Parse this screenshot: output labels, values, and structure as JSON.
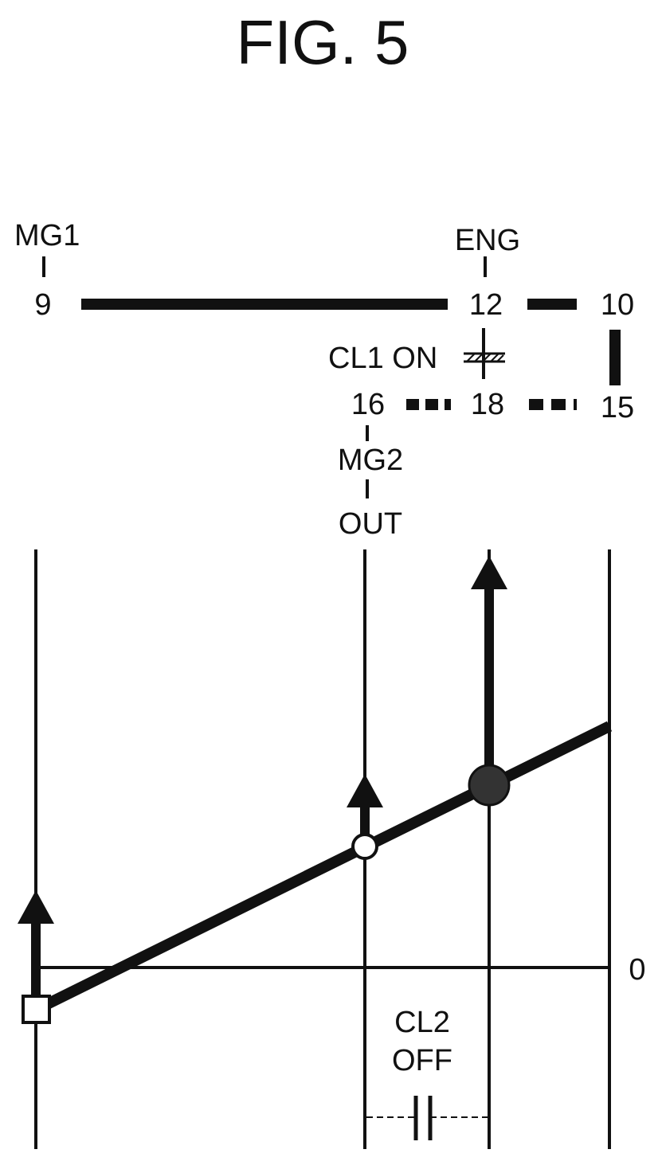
{
  "figure": {
    "title": "FIG. 5",
    "colors": {
      "ink": "#111111",
      "background": "#ffffff"
    }
  },
  "connection_diagram": {
    "mg1_label": "MG1",
    "eng_label": "ENG",
    "node_9": "9",
    "node_12": "12",
    "node_10": "10",
    "clutch1_label": "CL1 ON",
    "node_16": "16",
    "node_18": "18",
    "node_15": "15",
    "mg2_label": "MG2",
    "out_label": "OUT"
  },
  "nomograph": {
    "zero_label": "0",
    "clutch2_label_line1": "CL2",
    "clutch2_label_line2": "OFF"
  }
}
